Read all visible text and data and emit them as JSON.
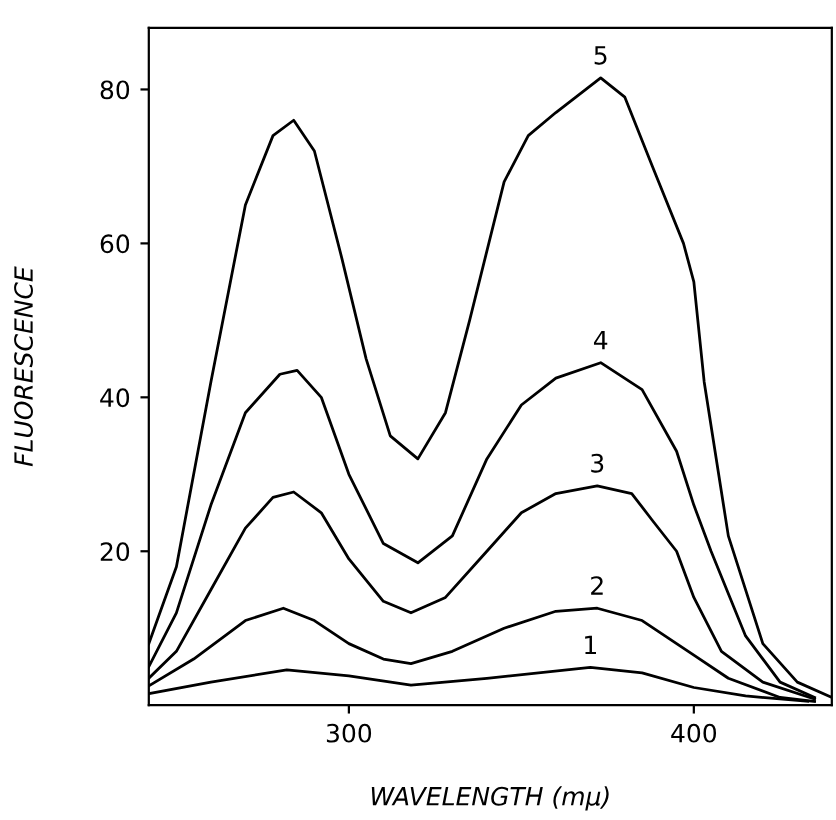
{
  "chart_data": {
    "type": "line",
    "xlabel": "WAVELENGTH (mμ)",
    "ylabel": "FLUORESCENCE",
    "xlim": [
      242,
      440
    ],
    "ylim": [
      0,
      88
    ],
    "xticks": [
      300,
      400
    ],
    "yticks": [
      20,
      40,
      60,
      80
    ],
    "grid": false,
    "legend": false,
    "marker": "none",
    "line_style": "solid",
    "series": [
      {
        "name": "5",
        "color": "#000000",
        "x": [
          242,
          250,
          260,
          270,
          278,
          284,
          290,
          298,
          305,
          312,
          320,
          328,
          335,
          345,
          352,
          360,
          373,
          380,
          388,
          397,
          400,
          403,
          410,
          420,
          430,
          440
        ],
        "values": [
          8,
          18,
          42,
          65,
          74,
          76,
          72,
          58,
          45,
          35,
          32,
          38,
          50,
          68,
          74,
          77,
          81.5,
          79,
          70,
          60,
          55,
          42,
          22,
          8,
          3,
          1
        ]
      },
      {
        "name": "4",
        "color": "#000000",
        "x": [
          242,
          250,
          260,
          270,
          280,
          285,
          292,
          300,
          310,
          320,
          330,
          340,
          350,
          360,
          373,
          385,
          395,
          400,
          405,
          415,
          425,
          435
        ],
        "values": [
          5,
          12,
          26,
          38,
          43,
          43.5,
          40,
          30,
          21,
          18.5,
          22,
          32,
          39,
          42.5,
          44.5,
          41,
          33,
          26,
          20,
          9,
          3,
          1
        ]
      },
      {
        "name": "3",
        "color": "#000000",
        "x": [
          242,
          250,
          260,
          270,
          278,
          284,
          292,
          300,
          310,
          318,
          328,
          340,
          350,
          360,
          372,
          382,
          388,
          395,
          400,
          408,
          420,
          435
        ],
        "values": [
          3.5,
          7,
          15,
          23,
          27,
          27.7,
          25,
          19,
          13.5,
          12,
          14,
          20,
          25,
          27.5,
          28.5,
          27.5,
          24,
          20,
          14,
          7,
          3,
          0.8
        ]
      },
      {
        "name": "2",
        "color": "#000000",
        "x": [
          242,
          255,
          270,
          281,
          290,
          300,
          310,
          318,
          330,
          345,
          360,
          372,
          385,
          400,
          410,
          425,
          435
        ],
        "values": [
          2.5,
          6,
          11,
          12.6,
          11,
          8,
          6,
          5.4,
          7,
          10,
          12.2,
          12.6,
          11,
          6.5,
          3.5,
          1,
          0.5
        ]
      },
      {
        "name": "1",
        "color": "#000000",
        "x": [
          242,
          260,
          282,
          300,
          318,
          340,
          370,
          385,
          400,
          415,
          433
        ],
        "values": [
          1.5,
          3,
          4.6,
          3.8,
          2.6,
          3.5,
          4.9,
          4.2,
          2.3,
          1.2,
          0.5
        ]
      }
    ]
  }
}
